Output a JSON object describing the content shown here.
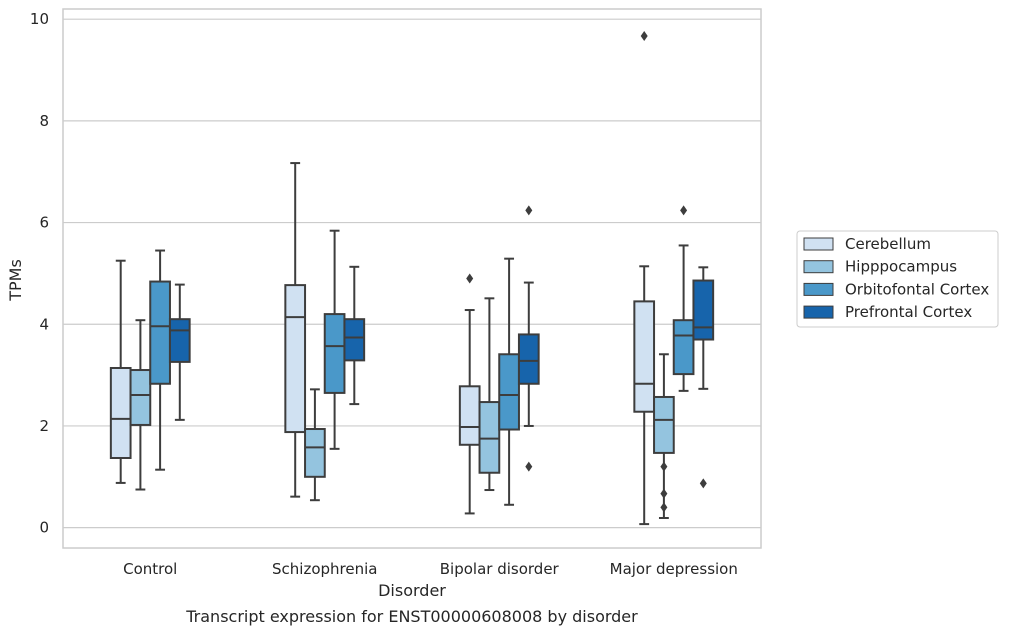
{
  "caption": "Transcript expression for ENST00000608008 by disorder",
  "chart_data": {
    "type": "box",
    "title": "",
    "xlabel": "Disorder",
    "ylabel": "TPMs",
    "ylim": [
      -0.4,
      10.2
    ],
    "yticks": [
      0,
      2,
      4,
      6,
      8,
      10
    ],
    "categories": [
      "Control",
      "Schizophrenia",
      "Bipolar disorder",
      "Major depression"
    ],
    "grid": "horizontal",
    "legend_position": "right",
    "series": [
      {
        "name": "Cerebellum",
        "color": "#d0e1f2",
        "boxes": [
          {
            "whislo": 0.88,
            "q1": 1.37,
            "med": 2.14,
            "q3": 3.14,
            "whishi": 5.25,
            "fliers": []
          },
          {
            "whislo": 0.61,
            "q1": 1.88,
            "med": 4.14,
            "q3": 4.77,
            "whishi": 7.17,
            "fliers": []
          },
          {
            "whislo": 0.28,
            "q1": 1.63,
            "med": 1.98,
            "q3": 2.78,
            "whishi": 4.28,
            "fliers": [
              4.9
            ]
          },
          {
            "whislo": 0.07,
            "q1": 2.28,
            "med": 2.83,
            "q3": 4.45,
            "whishi": 5.14,
            "fliers": [
              9.67
            ]
          }
        ]
      },
      {
        "name": "Hipppocampus",
        "color": "#94c4df",
        "boxes": [
          {
            "whislo": 0.75,
            "q1": 2.02,
            "med": 2.61,
            "q3": 3.1,
            "whishi": 4.08,
            "fliers": []
          },
          {
            "whislo": 0.54,
            "q1": 1.0,
            "med": 1.58,
            "q3": 1.94,
            "whishi": 2.72,
            "fliers": []
          },
          {
            "whislo": 0.74,
            "q1": 1.08,
            "med": 1.75,
            "q3": 2.47,
            "whishi": 4.51,
            "fliers": []
          },
          {
            "whislo": 0.19,
            "q1": 1.47,
            "med": 2.12,
            "q3": 2.57,
            "whishi": 3.41,
            "fliers": [
              1.2,
              0.67,
              0.4
            ]
          }
        ]
      },
      {
        "name": "Orbitofontal Cortex",
        "color": "#4a98c9",
        "boxes": [
          {
            "whislo": 1.14,
            "q1": 2.83,
            "med": 3.96,
            "q3": 4.84,
            "whishi": 5.45,
            "fliers": []
          },
          {
            "whislo": 1.55,
            "q1": 2.65,
            "med": 3.57,
            "q3": 4.2,
            "whishi": 5.84,
            "fliers": []
          },
          {
            "whislo": 0.45,
            "q1": 1.93,
            "med": 2.61,
            "q3": 3.41,
            "whishi": 5.29,
            "fliers": []
          },
          {
            "whislo": 2.69,
            "q1": 3.02,
            "med": 3.78,
            "q3": 4.08,
            "whishi": 5.55,
            "fliers": [
              6.24
            ]
          }
        ]
      },
      {
        "name": "Prefrontal Cortex",
        "color": "#1764ab",
        "boxes": [
          {
            "whislo": 2.12,
            "q1": 3.26,
            "med": 3.88,
            "q3": 4.1,
            "whishi": 4.78,
            "fliers": []
          },
          {
            "whislo": 2.43,
            "q1": 3.29,
            "med": 3.74,
            "q3": 4.1,
            "whishi": 5.13,
            "fliers": []
          },
          {
            "whislo": 2.0,
            "q1": 2.83,
            "med": 3.28,
            "q3": 3.8,
            "whishi": 4.82,
            "fliers": [
              6.24,
              1.2
            ]
          },
          {
            "whislo": 2.73,
            "q1": 3.7,
            "med": 3.94,
            "q3": 4.86,
            "whishi": 5.12,
            "fliers": [
              0.87
            ]
          }
        ]
      }
    ]
  }
}
